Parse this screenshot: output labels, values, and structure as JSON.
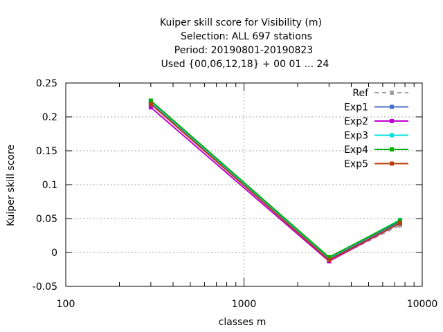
{
  "chart_data": {
    "type": "line",
    "title_lines": [
      "Kuiper skill score  for Visibility (m)",
      "Selection: ALL     697 stations",
      "Period: 20190801-20190823",
      "Used {00,06,12,18} + 00 01 ... 24"
    ],
    "xlabel": "classes m",
    "ylabel": "Kuiper skill score",
    "xscale": "log",
    "xlim": [
      100,
      10000
    ],
    "ylim": [
      -0.05,
      0.25
    ],
    "x_ticks": [
      100,
      1000,
      10000
    ],
    "x_tick_labels": [
      "100",
      "1000",
      "10000"
    ],
    "y_ticks": [
      -0.05,
      0,
      0.05,
      0.1,
      0.15,
      0.2,
      0.25
    ],
    "y_tick_labels": [
      "-0.05",
      "0",
      "0.05",
      "0.1",
      "0.15",
      "0.2",
      "0.25"
    ],
    "grid": true,
    "legend_position": "top-right",
    "x": [
      300,
      3000,
      7500
    ],
    "series": [
      {
        "name": "Ref",
        "color": "#a0a0a0",
        "dashed": true,
        "values": [
          0.222,
          -0.012,
          0.04
        ]
      },
      {
        "name": "Exp1",
        "color": "#4a6fc9",
        "dashed": false,
        "values": [
          0.22,
          -0.01,
          0.045
        ]
      },
      {
        "name": "Exp2",
        "color": "#c000d0",
        "dashed": false,
        "values": [
          0.214,
          -0.013,
          0.043
        ]
      },
      {
        "name": "Exp3",
        "color": "#00e0e0",
        "dashed": false,
        "values": [
          0.223,
          -0.008,
          0.048
        ]
      },
      {
        "name": "Exp4",
        "color": "#00b000",
        "dashed": false,
        "values": [
          0.224,
          -0.007,
          0.047
        ]
      },
      {
        "name": "Exp5",
        "color": "#b84010",
        "dashed": false,
        "values": [
          0.219,
          -0.011,
          0.043
        ]
      }
    ]
  }
}
